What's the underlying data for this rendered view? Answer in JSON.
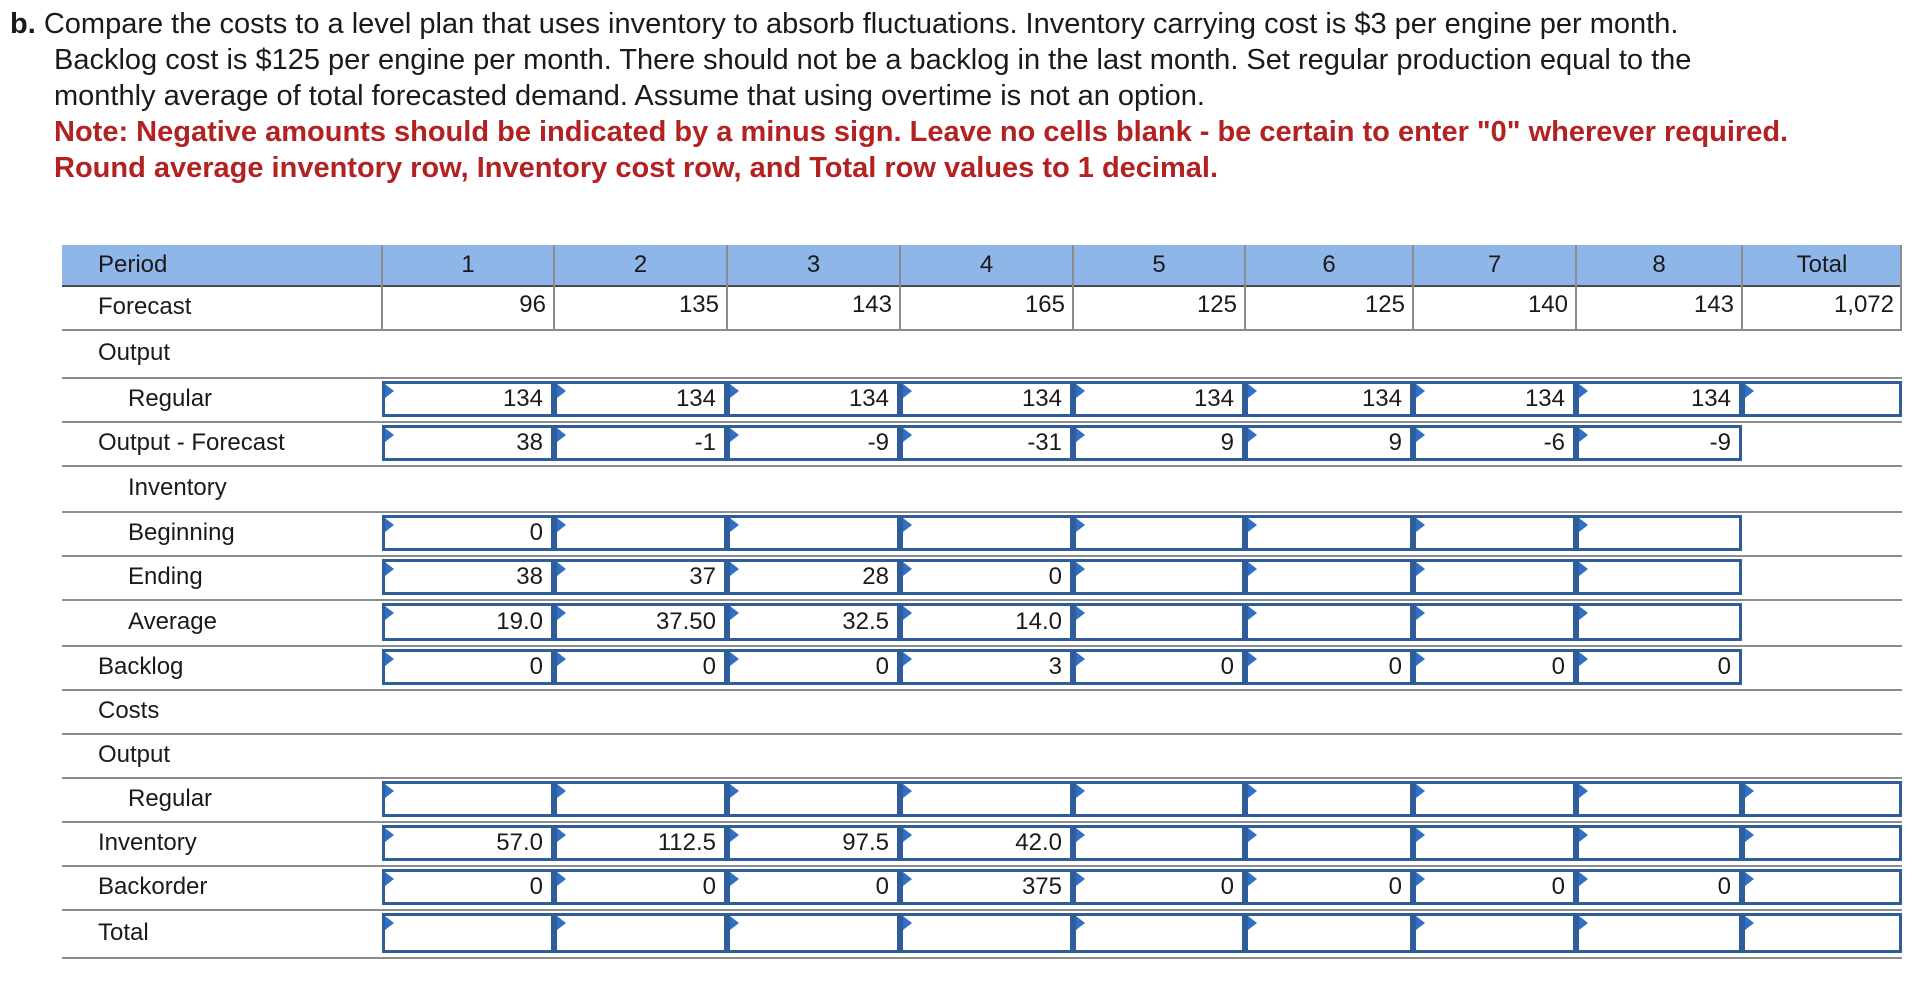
{
  "question": {
    "letter": "b.",
    "line1": "Compare the costs to a level plan that uses inventory to absorb fluctuations. Inventory carrying cost is $3 per engine per month.",
    "line2": "Backlog cost is $125 per engine per month. There should not be a backlog in the last month. Set regular production equal to the",
    "line3": "monthly average of total forecasted demand. Assume that using overtime is not an option.",
    "note1": "Note: Negative amounts should be indicated by a minus sign. Leave no cells blank - be certain to enter \"0\" wherever required.",
    "note2": "Round average inventory row, Inventory cost row, and Total row values to 1 decimal."
  },
  "table": {
    "header": {
      "label": "Period",
      "periods": [
        "1",
        "2",
        "3",
        "4",
        "5",
        "6",
        "7",
        "8"
      ],
      "total": "Total"
    },
    "forecast": {
      "label": "Forecast",
      "values": [
        "96",
        "135",
        "143",
        "165",
        "125",
        "125",
        "140",
        "143"
      ],
      "total": "1,072"
    },
    "output_section": {
      "label": "Output"
    },
    "regular": {
      "label": "Regular",
      "values": [
        "134",
        "134",
        "134",
        "134",
        "134",
        "134",
        "134",
        "134"
      ],
      "total": ""
    },
    "output_minus_forecast": {
      "label": "Output - Forecast",
      "values": [
        "38",
        "-1",
        "-9",
        "-31",
        "9",
        "9",
        "-6",
        "-9"
      ]
    },
    "inventory_section": {
      "label": "Inventory"
    },
    "beginning": {
      "label": "Beginning",
      "values": [
        "0",
        "",
        "",
        "",
        "",
        "",
        "",
        ""
      ]
    },
    "ending": {
      "label": "Ending",
      "values": [
        "38",
        "37",
        "28",
        "0",
        "",
        "",
        "",
        ""
      ]
    },
    "average": {
      "label": "Average",
      "values": [
        "19.0",
        "37.50",
        "32.5",
        "14.0",
        "",
        "",
        "",
        ""
      ]
    },
    "backlog": {
      "label": "Backlog",
      "values": [
        "0",
        "0",
        "0",
        "3",
        "0",
        "0",
        "0",
        "0"
      ]
    },
    "costs_section": {
      "label": "Costs"
    },
    "costs_output_section": {
      "label": "Output"
    },
    "costs_regular": {
      "label": "Regular",
      "values": [
        "",
        "",
        "",
        "",
        "",
        "",
        "",
        ""
      ],
      "total": ""
    },
    "inventory_cost": {
      "label": "Inventory",
      "values": [
        "57.0",
        "112.5",
        "97.5",
        "42.0",
        "",
        "",
        "",
        ""
      ],
      "total": ""
    },
    "backorder_cost": {
      "label": "Backorder",
      "values": [
        "0",
        "0",
        "0",
        "375",
        "0",
        "0",
        "0",
        "0"
      ],
      "total": ""
    },
    "total": {
      "label": "Total",
      "values": [
        "",
        "",
        "",
        "",
        "",
        "",
        "",
        ""
      ],
      "total": ""
    }
  },
  "colors": {
    "header_bg": "#8fb6e8",
    "input_border": "#2f5d9a",
    "input_marker": "#2f6fc6",
    "note_red": "#b22222"
  }
}
